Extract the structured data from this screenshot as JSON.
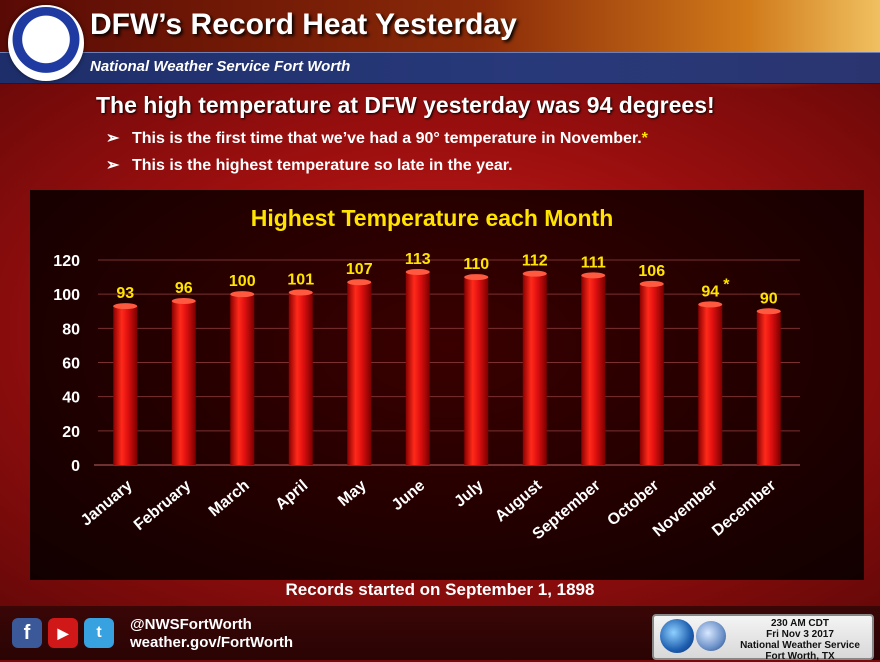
{
  "header": {
    "title": "DFW’s Record Heat Yesterday",
    "subtitle": "National Weather Service Fort Worth"
  },
  "headline": "The high temperature at DFW yesterday was 94 degrees!",
  "bullets": [
    {
      "text": "This is the first time that we’ve had a 90° temperature in November.",
      "star": "*"
    },
    {
      "text": "This is the highest temperature so late in the year.",
      "star": ""
    }
  ],
  "chart_data": {
    "type": "bar",
    "title": "Highest Temperature each Month",
    "categories": [
      "January",
      "February",
      "March",
      "April",
      "May",
      "June",
      "July",
      "August",
      "September",
      "October",
      "November",
      "December"
    ],
    "values": [
      93,
      96,
      100,
      101,
      107,
      113,
      110,
      112,
      111,
      106,
      94,
      90
    ],
    "data_labels": [
      "93",
      "96",
      "100",
      "101",
      "107",
      "113",
      "110",
      "112",
      "111",
      "106",
      "94",
      "90"
    ],
    "annotations": [
      {
        "category": "November",
        "text": "*"
      }
    ],
    "ylim": [
      0,
      120
    ],
    "yticks": [
      0,
      20,
      40,
      60,
      80,
      100,
      120
    ],
    "grid": true,
    "bar_color": "#e01010",
    "label_color": "#ffe400"
  },
  "footnote": "Records started on September 1, 1898",
  "footer": {
    "social": {
      "facebook": "f",
      "youtube": "▶",
      "twitter": "t"
    },
    "handle": "@NWSFortWorth",
    "website": "weather.gov/FortWorth",
    "stamp": {
      "time": "230 AM CDT",
      "date": "Fri Nov 3 2017",
      "office": "National Weather Service",
      "location": "Fort Worth, TX"
    }
  },
  "icons": {
    "logo": "nws-logo",
    "stamp_logos": [
      "noaa-logo-icon",
      "nws-logo-icon"
    ]
  }
}
